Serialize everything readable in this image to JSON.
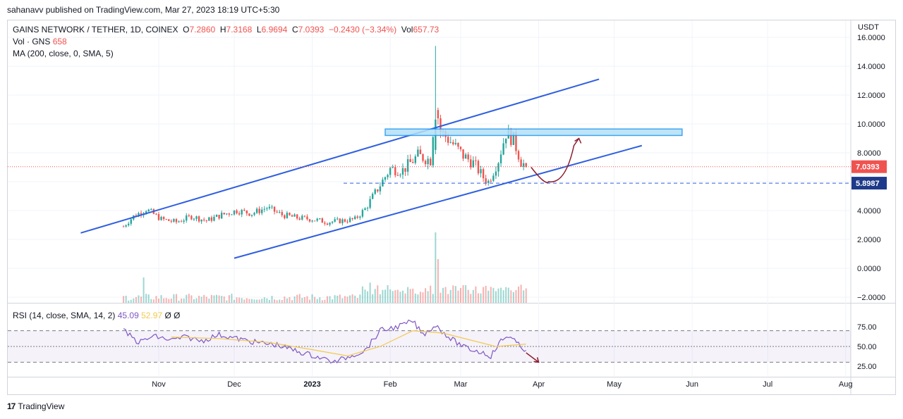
{
  "header": {
    "credit": "sahanavv published on TradingView.com, Mar 27, 2023 18:19 UTC+5:30"
  },
  "legend": {
    "symbol": "GAINS NETWORK / TETHER, 1D, COINEX",
    "o_label": "O",
    "o": "7.2860",
    "h_label": "H",
    "h": "7.3168",
    "l_label": "L",
    "l": "6.9694",
    "c_label": "C",
    "c": "7.0393",
    "change": "−0.2430 (−3.34%)",
    "vol_label": "Vol",
    "vol": "657.73",
    "vol_line_label": "Vol · GNS",
    "vol_line_value": "658",
    "ma_line": "MA (200, close, 0, SMA, 5)"
  },
  "rsi_legend": {
    "label": "RSI (14, close, SMA, 14, 2)",
    "rsi": "45.09",
    "ma": "52.97",
    "extra1": "Ø",
    "extra2": "Ø"
  },
  "footer": {
    "brand": "TradingView",
    "mark": "17"
  },
  "colors": {
    "up": "#26a69a",
    "down": "#ef5350",
    "channel": "#2f5fe0",
    "zone_fill": "#b3e0f7",
    "zone_stroke": "#2196f3",
    "rsi": "#7e57c2",
    "rsi_ma": "#f2c94c",
    "projection": "#8b1a2b",
    "support": "#2f5fe0"
  },
  "chart_data": [
    {
      "type": "candlestick",
      "currency": "USDT",
      "ylim": [
        -2,
        16
      ],
      "y_ticks": [
        "16.0000",
        "14.0000",
        "12.0000",
        "10.0000",
        "8.0000",
        "6.0000",
        "4.0000",
        "2.0000",
        "0.0000",
        "−2.0000"
      ],
      "x_ticks": [
        "Nov",
        "Dec",
        "2023",
        "Feb",
        "Mar",
        "Apr",
        "May",
        "Jun",
        "Jul",
        "Aug"
      ],
      "last_price_label": "7.0393",
      "support_label": "5.8987",
      "support_level": 5.8987,
      "last_price": 7.0393,
      "ohlc_last": {
        "open": 7.286,
        "high": 7.3168,
        "low": 6.9694,
        "close": 7.0393
      },
      "channel_upper": [
        [
          "2022-10-01",
          2.45
        ],
        [
          "2023-04-25",
          13.1
        ]
      ],
      "channel_lower": [
        [
          "2022-12-01",
          0.7
        ],
        [
          "2023-05-12",
          8.5
        ]
      ],
      "resistance_zone": {
        "from": "2023-01-30",
        "to": "2023-05-28",
        "low": 9.2,
        "high": 9.65
      },
      "projection": [
        [
          "2023-03-29",
          7.0
        ],
        [
          "2023-04-05",
          6.0
        ],
        [
          "2023-04-15",
          8.5
        ],
        [
          "2023-04-17",
          9.0
        ]
      ],
      "price_path": [
        [
          "2022-10-18",
          2.9
        ],
        [
          "2022-10-22",
          3.6
        ],
        [
          "2022-10-27",
          4.1
        ],
        [
          "2022-11-02",
          3.4
        ],
        [
          "2022-11-08",
          3.2
        ],
        [
          "2022-11-14",
          3.6
        ],
        [
          "2022-11-20",
          3.3
        ],
        [
          "2022-11-26",
          3.7
        ],
        [
          "2022-12-02",
          4.0
        ],
        [
          "2022-12-08",
          3.8
        ],
        [
          "2022-12-14",
          4.2
        ],
        [
          "2022-12-20",
          3.7
        ],
        [
          "2022-12-26",
          3.5
        ],
        [
          "2023-01-01",
          3.4
        ],
        [
          "2023-01-07",
          3.2
        ],
        [
          "2023-01-13",
          3.3
        ],
        [
          "2023-01-18",
          3.4
        ],
        [
          "2023-01-22",
          4.1
        ],
        [
          "2023-01-27",
          5.5
        ],
        [
          "2023-02-01",
          6.9
        ],
        [
          "2023-02-06",
          6.8
        ],
        [
          "2023-02-12",
          7.8
        ],
        [
          "2023-02-17",
          7.5
        ],
        [
          "2023-02-19",
          11.5
        ],
        [
          "2023-02-21",
          9.5
        ],
        [
          "2023-02-26",
          8.6
        ],
        [
          "2023-03-02",
          7.8
        ],
        [
          "2023-03-06",
          7.3
        ],
        [
          "2023-03-10",
          6.3
        ],
        [
          "2023-03-12",
          6.0
        ],
        [
          "2023-03-16",
          7.5
        ],
        [
          "2023-03-19",
          9.4
        ],
        [
          "2023-03-22",
          8.9
        ],
        [
          "2023-03-25",
          7.4
        ],
        [
          "2023-03-27",
          7.04
        ]
      ],
      "spike_high": 15.4,
      "volume_spike_date": "2023-02-19"
    },
    {
      "type": "line",
      "title": "RSI (14, close, SMA, 14, 2)",
      "y_ticks": [
        "75.00",
        "50.00",
        "25.00"
      ],
      "ylim": [
        20,
        85
      ],
      "bands": [
        30,
        50,
        70
      ],
      "series": [
        {
          "name": "RSI",
          "values": [
            [
              "2022-10-18",
              70
            ],
            [
              "2022-10-24",
              55
            ],
            [
              "2022-10-30",
              63
            ],
            [
              "2022-11-06",
              58
            ],
            [
              "2022-11-12",
              62
            ],
            [
              "2022-11-18",
              57
            ],
            [
              "2022-11-25",
              65
            ],
            [
              "2022-12-02",
              60
            ],
            [
              "2022-12-10",
              55
            ],
            [
              "2022-12-18",
              52
            ],
            [
              "2022-12-26",
              44
            ],
            [
              "2023-01-04",
              36
            ],
            [
              "2023-01-10",
              30
            ],
            [
              "2023-01-16",
              38
            ],
            [
              "2023-01-22",
              45
            ],
            [
              "2023-01-28",
              70
            ],
            [
              "2023-02-04",
              75
            ],
            [
              "2023-02-10",
              82
            ],
            [
              "2023-02-14",
              65
            ],
            [
              "2023-02-19",
              77
            ],
            [
              "2023-02-25",
              60
            ],
            [
              "2023-03-03",
              48
            ],
            [
              "2023-03-10",
              42
            ],
            [
              "2023-03-13",
              38
            ],
            [
              "2023-03-17",
              57
            ],
            [
              "2023-03-20",
              64
            ],
            [
              "2023-03-24",
              52
            ],
            [
              "2023-03-27",
              45
            ]
          ]
        },
        {
          "name": "RSI MA",
          "values": [
            [
              "2022-11-06",
              62
            ],
            [
              "2022-11-25",
              60
            ],
            [
              "2022-12-15",
              55
            ],
            [
              "2023-01-01",
              46
            ],
            [
              "2023-01-15",
              38
            ],
            [
              "2023-01-28",
              50
            ],
            [
              "2023-02-10",
              70
            ],
            [
              "2023-02-22",
              67
            ],
            [
              "2023-03-05",
              58
            ],
            [
              "2023-03-15",
              50
            ],
            [
              "2023-03-27",
              53
            ]
          ]
        }
      ],
      "projection": [
        [
          "2023-03-27",
          42
        ],
        [
          "2023-04-01",
          30
        ]
      ]
    }
  ]
}
